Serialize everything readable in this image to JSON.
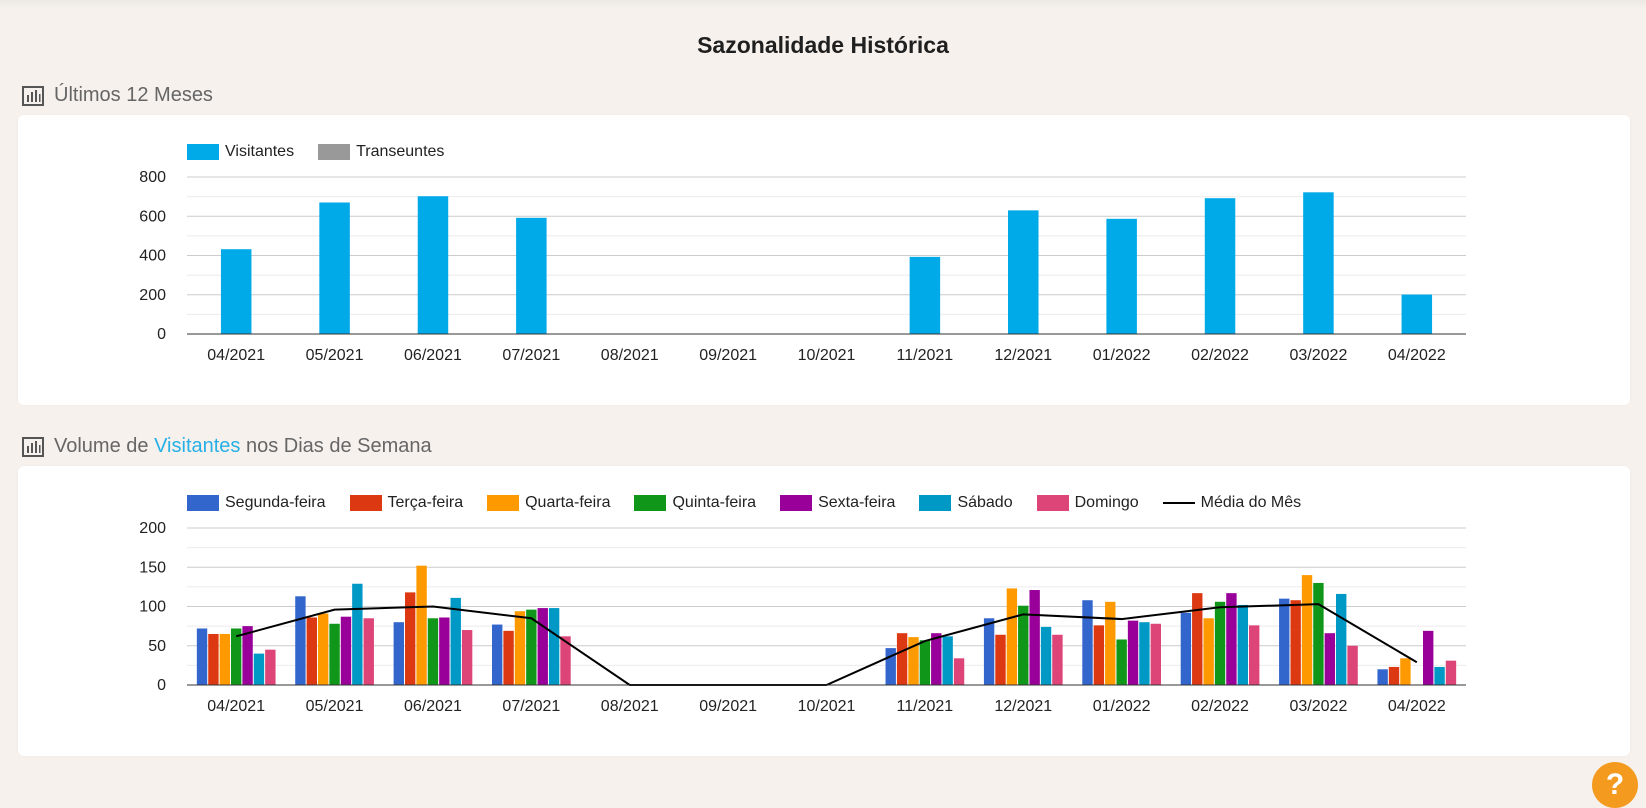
{
  "page": {
    "title": "Sazonalidade Histórica"
  },
  "section1": {
    "title": "Últimos 12 Meses",
    "icon": "bar-chart-icon"
  },
  "section2": {
    "title_prefix": "Volume de ",
    "title_highlight": "Visitantes",
    "title_suffix": " nos Dias de Semana",
    "icon": "bar-chart-icon"
  },
  "help": {
    "label": "?",
    "icon": "help-icon"
  },
  "colors": {
    "highlight": "#27b0e6",
    "help_button": "#f39a1f"
  },
  "chart_data": [
    {
      "type": "bar",
      "categories": [
        "04/2021",
        "05/2021",
        "06/2021",
        "07/2021",
        "08/2021",
        "09/2021",
        "10/2021",
        "11/2021",
        "12/2021",
        "01/2022",
        "02/2022",
        "03/2022",
        "04/2022"
      ],
      "series": [
        {
          "name": "Visitantes",
          "color": "#00a9e8",
          "values": [
            432,
            670,
            702,
            592,
            0,
            0,
            0,
            393,
            630,
            587,
            692,
            722,
            201
          ]
        },
        {
          "name": "Transeuntes",
          "color": "#999999",
          "values": [
            0,
            0,
            0,
            0,
            0,
            0,
            0,
            0,
            0,
            0,
            0,
            0,
            0
          ]
        }
      ],
      "ylim": [
        0,
        800
      ],
      "yticks": [
        0,
        200,
        400,
        600,
        800
      ],
      "grid": true,
      "legend": "top-left"
    },
    {
      "type": "bar",
      "categories": [
        "04/2021",
        "05/2021",
        "06/2021",
        "07/2021",
        "08/2021",
        "09/2021",
        "10/2021",
        "11/2021",
        "12/2021",
        "01/2022",
        "02/2022",
        "03/2022",
        "04/2022"
      ],
      "series": [
        {
          "name": "Segunda-feira",
          "color": "#3366cc",
          "values": [
            72,
            113,
            80,
            77,
            0,
            0,
            0,
            47,
            85,
            108,
            92,
            110,
            20
          ]
        },
        {
          "name": "Terça-feira",
          "color": "#dc3912",
          "values": [
            65,
            86,
            118,
            69,
            0,
            0,
            0,
            66,
            64,
            76,
            117,
            108,
            23
          ]
        },
        {
          "name": "Quarta-feira",
          "color": "#ff9900",
          "values": [
            65,
            91,
            152,
            94,
            0,
            0,
            0,
            61,
            123,
            106,
            85,
            140,
            34
          ]
        },
        {
          "name": "Quinta-feira",
          "color": "#109618",
          "values": [
            72,
            78,
            85,
            96,
            0,
            0,
            0,
            57,
            101,
            58,
            106,
            130,
            0
          ]
        },
        {
          "name": "Sexta-feira",
          "color": "#990099",
          "values": [
            75,
            87,
            86,
            98,
            0,
            0,
            0,
            66,
            121,
            82,
            117,
            66,
            69
          ]
        },
        {
          "name": "Sábado",
          "color": "#0099c6",
          "values": [
            40,
            129,
            111,
            98,
            0,
            0,
            0,
            62,
            74,
            80,
            102,
            116,
            23
          ]
        },
        {
          "name": "Domingo",
          "color": "#dd4477",
          "values": [
            45,
            85,
            70,
            62,
            0,
            0,
            0,
            34,
            64,
            78,
            76,
            50,
            31
          ]
        },
        {
          "name": "Média do Mês",
          "type": "line",
          "color": "#000000",
          "values": [
            62,
            96,
            100,
            85,
            0,
            0,
            0,
            56,
            90,
            84,
            99,
            103,
            29
          ]
        }
      ],
      "ylim": [
        0,
        200
      ],
      "yticks": [
        0,
        50,
        100,
        150,
        200
      ],
      "grid": true,
      "legend": "top-left"
    }
  ]
}
